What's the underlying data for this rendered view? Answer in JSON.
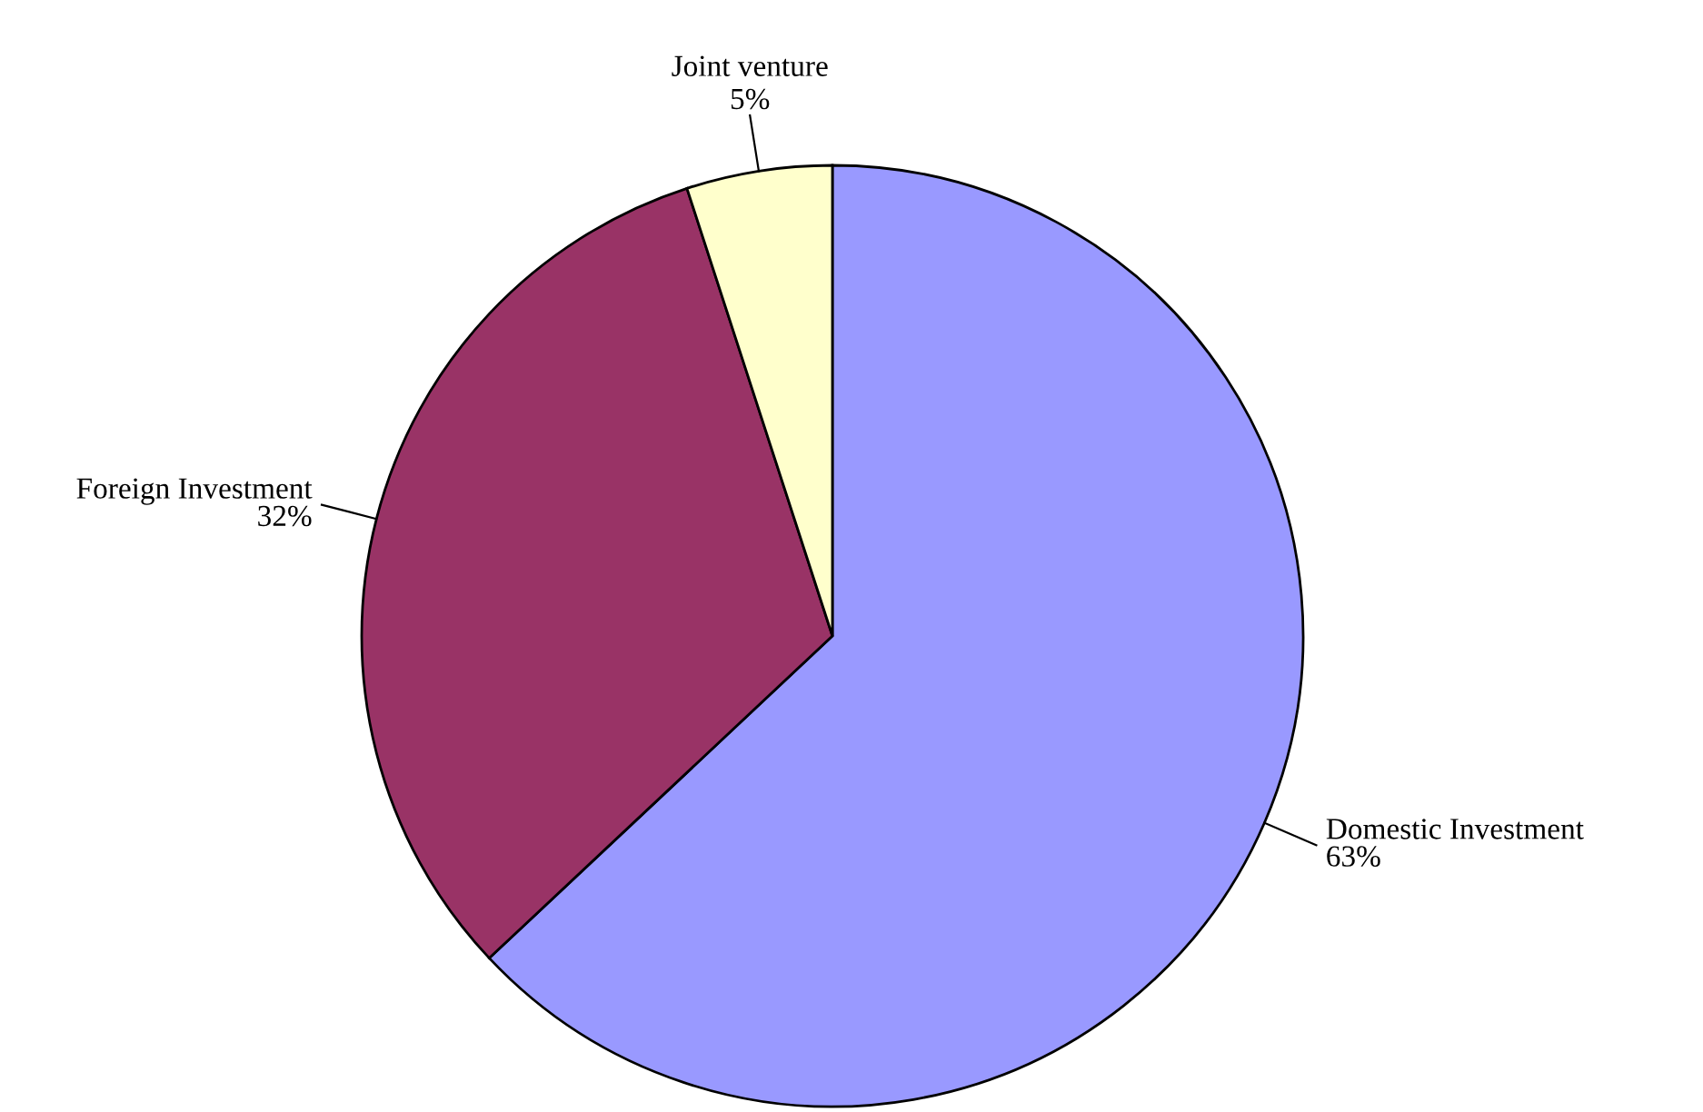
{
  "chart_data": {
    "type": "pie",
    "categories": [
      "Domestic Investment",
      "Foreign Investment",
      "Joint venture"
    ],
    "values": [
      63,
      32,
      5
    ],
    "value_labels": [
      "63%",
      "32%",
      "5%"
    ],
    "colors": [
      "#9999ff",
      "#993366",
      "#ffffcc"
    ]
  }
}
